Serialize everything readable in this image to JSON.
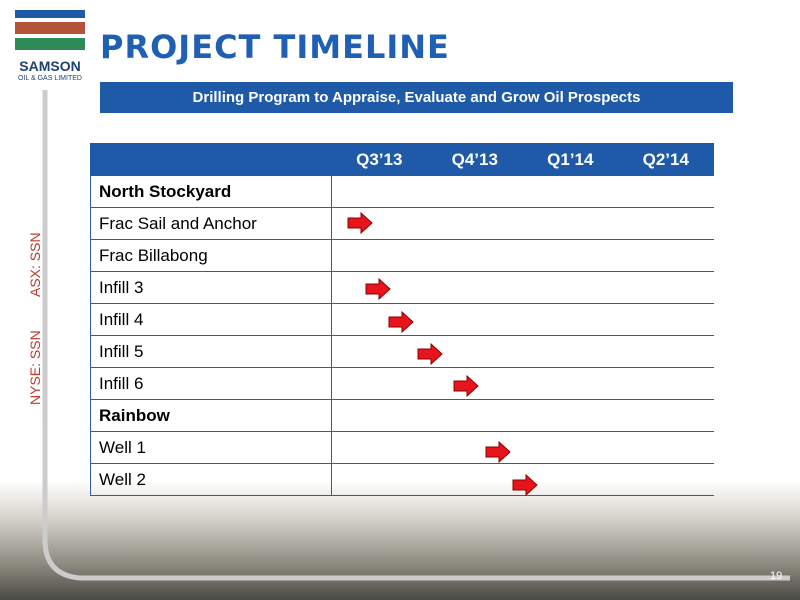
{
  "logo": {
    "name": "SAMSON",
    "tagline": "OIL & GAS LIMITED"
  },
  "header": {
    "title": "PROJECT TIMELINE",
    "subtitle": "Drilling Program to Appraise, Evaluate and Grow Oil Prospects"
  },
  "side_labels": [
    "ASX: SSN",
    "NYSE: SSN"
  ],
  "table": {
    "columns": [
      "Q3’13",
      "Q4’13",
      "Q1’14",
      "Q2’14"
    ],
    "rows": [
      {
        "label": "North Stockyard",
        "group": true
      },
      {
        "label": "Frac Sail and Anchor",
        "group": false
      },
      {
        "label": "Frac Billabong",
        "group": false
      },
      {
        "label": "Infill 3",
        "group": false
      },
      {
        "label": "Infill 4",
        "group": false
      },
      {
        "label": "Infill 5",
        "group": false
      },
      {
        "label": "Infill 6",
        "group": false
      },
      {
        "label": "Rainbow",
        "group": true
      },
      {
        "label": "Well 1",
        "group": false
      },
      {
        "label": "Well 2",
        "group": false
      }
    ]
  },
  "page_number": 19
}
